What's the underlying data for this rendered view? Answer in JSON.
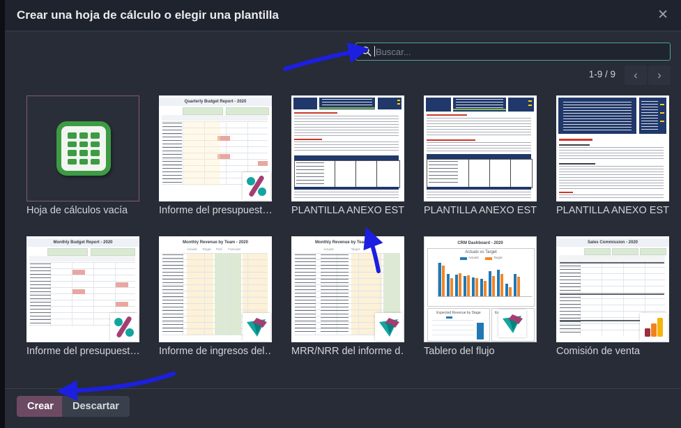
{
  "dialog": {
    "title": "Crear una hoja de cálculo o elegir una plantilla",
    "close_glyph": "✕"
  },
  "search": {
    "placeholder": "Buscar..."
  },
  "pagination": {
    "range": "1-9 / 9",
    "prev": "‹",
    "next": "›"
  },
  "templates": [
    {
      "label": "Hoja de cálculos vacía",
      "selected": true
    },
    {
      "label": "Informe del presupuest…",
      "thumb_title": "Quarterly Budget Report - 2020"
    },
    {
      "label": "PLANTILLA ANEXO EST…"
    },
    {
      "label": "PLANTILLA ANEXO EST…"
    },
    {
      "label": "PLANTILLA ANEXO EST…"
    },
    {
      "label": "Informe del presupuest…",
      "thumb_title": "Monthly Budget Report - 2020"
    },
    {
      "label": "Informe de ingresos del…",
      "thumb_title": "Monthly Revenue by Team - 2020",
      "col_headers": "Actuals      Target      Perf.      Forecast"
    },
    {
      "label": "MRR/NRR del informe d…",
      "thumb_title": "Monthly Revenue by Team - 2020",
      "col_headers": "Actuals                    Target"
    },
    {
      "label": "Tablero del flujo",
      "thumb_title": "CRM Dashboard - 2020",
      "chart_title": "Actuals vs Target",
      "legend": {
        "a": "Actuals",
        "b": "Target"
      },
      "panel1_title": "Expected Revenue by Stage",
      "panel2_title": "Expected R",
      "chart_bars": [
        [
          100,
          92
        ],
        [
          66,
          55
        ],
        [
          64,
          68
        ],
        [
          60,
          63
        ],
        [
          57,
          55
        ],
        [
          53,
          46
        ],
        [
          74,
          60
        ],
        [
          79,
          66
        ],
        [
          38,
          28
        ],
        [
          66,
          58
        ]
      ]
    },
    {
      "label": "Comisión de venta",
      "thumb_title": "Sales Commission - 2020"
    }
  ],
  "footer": {
    "create_label": "Crear",
    "discard_label": "Descartar"
  },
  "colors": {
    "accent_purple": "#714B67",
    "search_border": "#4DA294",
    "arrow_blue": "#1C1FE0",
    "chart_blue": "#2079B5",
    "chart_orange": "#F2862A",
    "logo_teal": "#12A5A0",
    "logo_magenta": "#A43E72"
  }
}
